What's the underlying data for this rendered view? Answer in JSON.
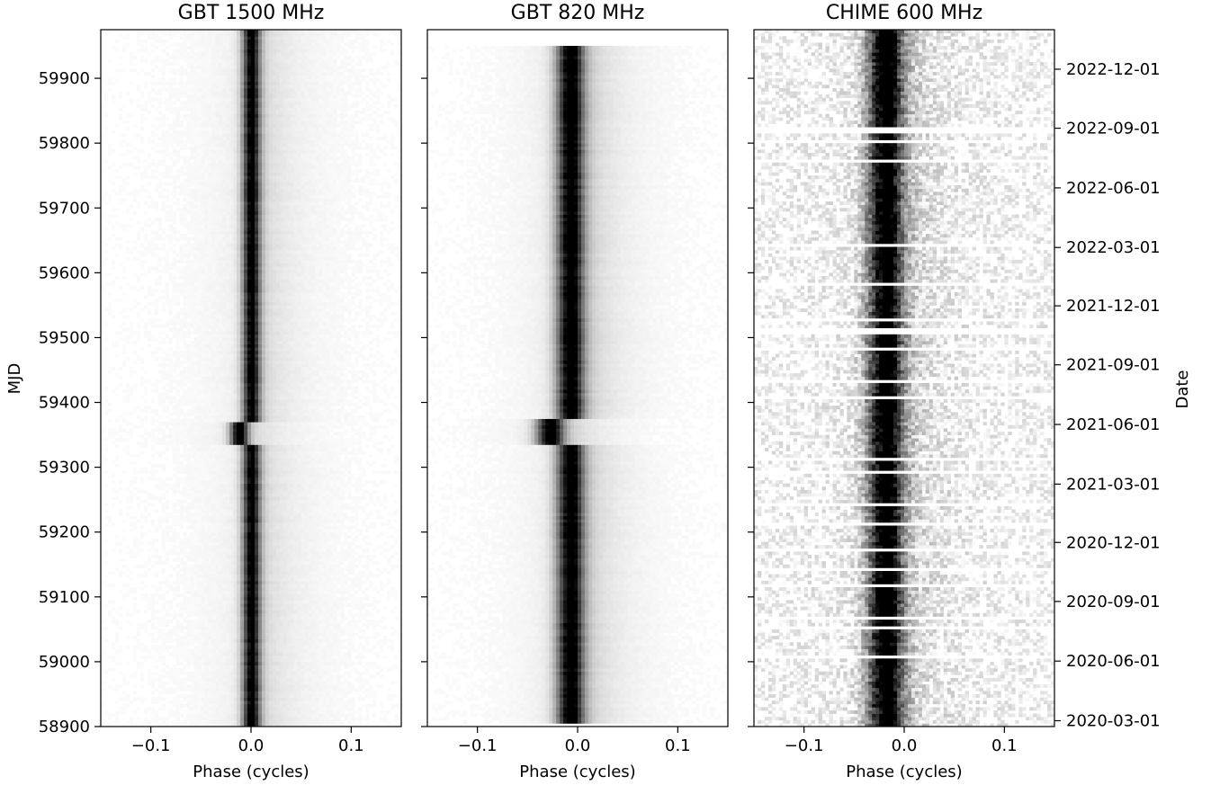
{
  "chart_data": [
    {
      "type": "heatmap",
      "title": "GBT 1500 MHz",
      "xlabel": "Phase (cycles)",
      "ylabel": "MJD",
      "xlim": [
        -0.15,
        0.15
      ],
      "ylim": [
        58900,
        59975
      ],
      "xticks": [
        -0.1,
        0.0,
        0.1
      ],
      "xtick_labels": [
        "−0.1",
        "0.0",
        "0.1"
      ],
      "yticks": [
        58900,
        59000,
        59100,
        59200,
        59300,
        59400,
        59500,
        59600,
        59700,
        59800,
        59900
      ],
      "ytick_labels": [
        "58900",
        "59000",
        "59100",
        "59200",
        "59300",
        "59400",
        "59500",
        "59600",
        "59700",
        "59800",
        "59900"
      ],
      "data_range_mjd": [
        58900,
        59975
      ],
      "profile": {
        "peak_phase": 0.0,
        "width": 0.006,
        "shift_phase": -0.012,
        "shift_mjd": [
          59335,
          59368
        ],
        "tail_strength": 0.22
      },
      "noise": 0.02,
      "gaps_mjd": []
    },
    {
      "type": "heatmap",
      "title": "GBT 820 MHz",
      "xlabel": "Phase (cycles)",
      "ylabel": "",
      "xlim": [
        -0.15,
        0.15
      ],
      "ylim": [
        58900,
        59975
      ],
      "xticks": [
        -0.1,
        0.0,
        0.1
      ],
      "xtick_labels": [
        "−0.1",
        "0.0",
        "0.1"
      ],
      "yticks": [
        58900,
        59000,
        59100,
        59200,
        59300,
        59400,
        59500,
        59600,
        59700,
        59800,
        59900
      ],
      "ytick_labels": [],
      "data_range_mjd": [
        58905,
        59945
      ],
      "profile": {
        "peak_phase": -0.008,
        "width": 0.009,
        "shift_phase": -0.02,
        "shift_mjd": [
          59335,
          59372
        ],
        "tail_strength": 0.35
      },
      "noise": 0.02,
      "gaps_mjd": []
    },
    {
      "type": "heatmap",
      "title": "CHIME 600 MHz",
      "xlabel": "Phase (cycles)",
      "ylabel": "Date",
      "xlim": [
        -0.15,
        0.15
      ],
      "ylim": [
        58900,
        59975
      ],
      "xticks": [
        -0.1,
        0.0,
        0.1
      ],
      "xtick_labels": [
        "−0.1",
        "0.0",
        "0.1"
      ],
      "yticks": [
        58900,
        59000,
        59100,
        59200,
        59300,
        59400,
        59500,
        59600,
        59700,
        59800,
        59900
      ],
      "ytick_labels": [],
      "secondary_y_axis": {
        "label": "Date",
        "ticks_mjd": [
          58909,
          59001,
          59093,
          59184,
          59274,
          59366,
          59458,
          59549,
          59639,
          59731,
          59823,
          59914
        ],
        "tick_labels": [
          "2020-03-01",
          "2020-06-01",
          "2020-09-01",
          "2020-12-01",
          "2021-03-01",
          "2021-06-01",
          "2021-09-01",
          "2021-12-01",
          "2022-03-01",
          "2022-06-01",
          "2022-09-01",
          "2022-12-01"
        ]
      },
      "data_range_mjd": [
        58900,
        59975
      ],
      "profile": {
        "peak_phase": -0.02,
        "width": 0.012,
        "shift_phase": 0,
        "shift_mjd": [
          0,
          0
        ],
        "tail_strength": 0.45
      },
      "noise": 0.32,
      "gaps_mjd": [
        59007,
        59050,
        59065,
        59115,
        59140,
        59172,
        59210,
        59240,
        59288,
        59310,
        59406,
        59430,
        59480,
        59505,
        59512,
        59525,
        59580,
        59640,
        59768,
        59800,
        59815,
        59822
      ]
    }
  ]
}
